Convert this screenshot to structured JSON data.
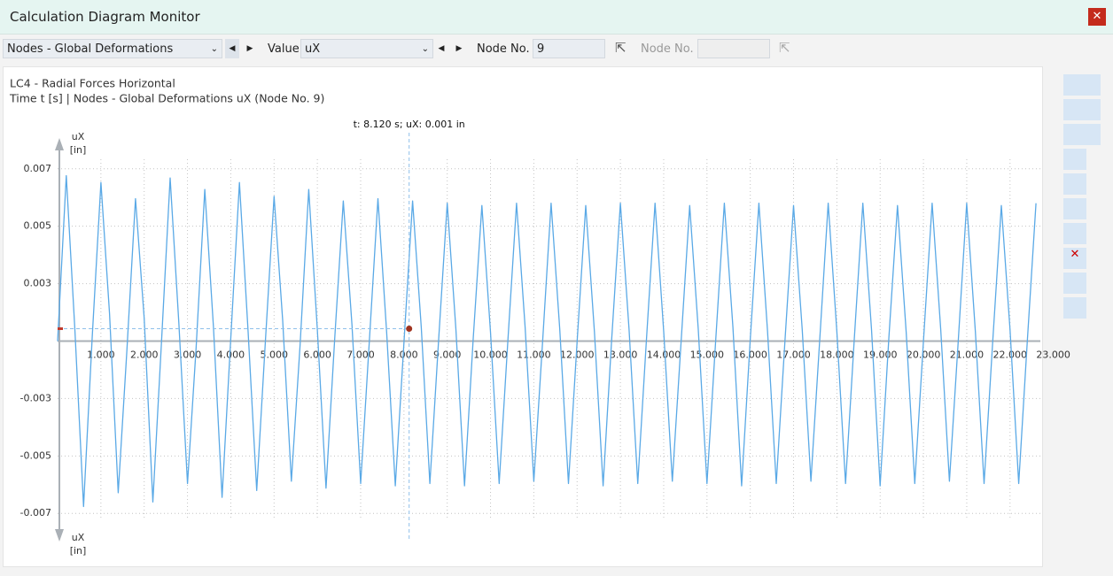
{
  "window": {
    "title": "Calculation Diagram Monitor"
  },
  "toolbar": {
    "result_type": "Nodes - Global Deformations",
    "value_label": "Value",
    "value": "uX",
    "node_label_1": "Node No.",
    "node_1": "9",
    "node_label_2": "Node No."
  },
  "chart_data": {
    "type": "line",
    "title": "LC4 - Radial Forces Horizontal",
    "subtitle": "Time t [s] | Nodes - Global Deformations uX (Node No. 9)",
    "y_label": "uX",
    "y_unit": "[in]",
    "color": "#5aa9e6",
    "x": [
      0,
      0.2,
      0.4,
      0.6,
      0.8,
      1,
      1.2,
      1.4,
      1.6,
      1.8,
      2,
      2.2,
      2.4,
      2.6,
      2.8,
      3,
      3.2,
      3.4,
      3.6,
      3.8,
      4,
      4.2,
      4.4,
      4.6,
      4.8,
      5,
      5.2,
      5.4,
      5.6,
      5.8,
      6,
      6.2,
      6.4,
      6.6,
      6.8,
      7,
      7.2,
      7.4,
      7.6,
      7.8,
      8,
      8.2,
      8.4,
      8.6,
      8.8,
      9,
      9.2,
      9.4,
      9.6,
      9.8,
      10,
      10.2,
      10.4,
      10.6,
      10.8,
      11,
      11.2,
      11.4,
      11.6,
      11.8,
      12,
      12.2,
      12.4,
      12.6,
      12.8,
      13,
      13.2,
      13.4,
      13.6,
      13.8,
      14,
      14.2,
      14.4,
      14.6,
      14.8,
      15,
      15.2,
      15.4,
      15.6,
      15.8,
      16,
      16.2,
      16.4,
      16.6,
      16.8,
      17,
      17.2,
      17.4,
      17.6,
      17.8,
      18,
      18.2,
      18.4,
      18.6,
      18.8,
      19,
      19.2,
      19.4,
      19.6,
      19.8,
      20,
      20.2,
      20.4,
      20.6,
      20.8,
      21,
      21.2,
      21.4,
      21.6,
      21.8,
      22,
      22.2,
      22.4,
      22.6
    ],
    "values": [
      0,
      0.0072,
      0.0005,
      -0.0072,
      0.0002,
      0.0069,
      0.0012,
      -0.0066,
      -0.0004,
      0.0062,
      0.001,
      -0.007,
      0,
      0.0071,
      0.0008,
      -0.0062,
      -0.0003,
      0.0066,
      0.0006,
      -0.0068,
      0.0001,
      0.0069,
      0.0004,
      -0.0065,
      0,
      0.0063,
      0.0009,
      -0.0061,
      -0.0002,
      0.0066,
      0.0005,
      -0.0064,
      0.0001,
      0.0061,
      0.0007,
      -0.0062,
      0,
      0.0062,
      0.0004,
      -0.0063,
      -0.0001,
      0.0061,
      0.0006,
      -0.0062,
      0,
      0.006,
      0.0005,
      -0.0063,
      0.0001,
      0.0059,
      0.0004,
      -0.0062,
      0,
      0.006,
      0.0006,
      -0.0061,
      -0.0001,
      0.006,
      0.0005,
      -0.0062,
      0,
      0.0059,
      0.0004,
      -0.0063,
      0.0001,
      0.006,
      0.0005,
      -0.0062,
      0,
      0.006,
      0.0004,
      -0.0061,
      -0.0001,
      0.0059,
      0.0005,
      -0.0062,
      0,
      0.006,
      0.0006,
      -0.0063,
      0.0001,
      0.006,
      0.0004,
      -0.0062,
      0,
      0.0059,
      0.0005,
      -0.0061,
      -0.0001,
      0.006,
      0.0004,
      -0.0062,
      0,
      0.006,
      0.0005,
      -0.0063,
      0.0001,
      0.0059,
      0.0004,
      -0.0062,
      0,
      0.006,
      0.0005,
      -0.0061,
      -0.0001,
      0.006,
      0.0004,
      -0.0062,
      0,
      0.0059,
      0.0005,
      -0.0062,
      0,
      0.006
    ],
    "xlim": [
      0,
      22.7
    ],
    "ylim": [
      -0.0088,
      0.0088
    ],
    "xticks": [
      {
        "value": 1,
        "label": "1.000"
      },
      {
        "value": 2,
        "label": "2.000"
      },
      {
        "value": 3,
        "label": "3.000"
      },
      {
        "value": 4,
        "label": "4.000"
      },
      {
        "value": 5,
        "label": "5.000"
      },
      {
        "value": 6,
        "label": "6.000"
      },
      {
        "value": 7,
        "label": "7.000"
      },
      {
        "value": 8,
        "label": "8.000"
      },
      {
        "value": 9,
        "label": "9.000"
      },
      {
        "value": 10,
        "label": "10.000"
      },
      {
        "value": 11,
        "label": "11.000"
      },
      {
        "value": 12,
        "label": "12.000"
      },
      {
        "value": 13,
        "label": "13.000"
      },
      {
        "value": 14,
        "label": "14.000"
      },
      {
        "value": 15,
        "label": "15.000"
      },
      {
        "value": 16,
        "label": "16.000"
      },
      {
        "value": 17,
        "label": "17.000"
      },
      {
        "value": 18,
        "label": "18.000"
      },
      {
        "value": 19,
        "label": "19.000"
      },
      {
        "value": 20,
        "label": "20.000"
      },
      {
        "value": 21,
        "label": "21.000"
      },
      {
        "value": 22,
        "label": "22.000"
      },
      {
        "value": 23,
        "label": "23.000"
      }
    ],
    "yticks": [
      {
        "value": -0.0075,
        "label": "-0.007"
      },
      -0.005,
      {
        "value": -0.0025,
        "label": "-0.003"
      },
      {
        "value": 0.0025,
        "label": "0.003"
      },
      0.005,
      {
        "value": 0.0075,
        "label": "0.007"
      }
    ],
    "grid": true,
    "cursor": {
      "x": 8.12,
      "y": 0.00054,
      "label": "t: 8.120 s; uX: 0.001 in"
    }
  }
}
